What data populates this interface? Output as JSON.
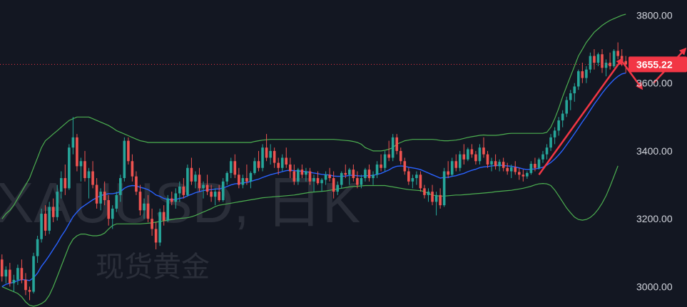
{
  "watermark": {
    "symbol": "XAUUSD, 日K",
    "name": "现货黄金"
  },
  "chart_data": {
    "type": "candlestick",
    "ylim": [
      2940,
      3845
    ],
    "y_ticks": [
      {
        "value": 3800,
        "label": "3800.00"
      },
      {
        "value": 3600,
        "label": "3600.00"
      },
      {
        "value": 3400,
        "label": "3400.00"
      },
      {
        "value": 3200,
        "label": "3200.00"
      },
      {
        "value": 3000,
        "label": "3000.00"
      }
    ],
    "last_price": {
      "value": 3655.22,
      "label": "3655.22"
    },
    "colors": {
      "background": "#131722",
      "up": "#26a69a",
      "down": "#ef5350",
      "ma": "#2962ff",
      "bands": "#4caf50",
      "price_line": "#f23645",
      "arrows": "#f23645",
      "axis_text": "#d1d4dc",
      "watermark": "#2a2e39"
    },
    "candles": [
      [
        3080,
        3095,
        3015,
        3030
      ],
      [
        3030,
        3060,
        3010,
        3050
      ],
      [
        3050,
        3070,
        3000,
        3010
      ],
      [
        3010,
        3035,
        2985,
        3020
      ],
      [
        3020,
        3065,
        3005,
        3055
      ],
      [
        3055,
        3080,
        3010,
        3020
      ],
      [
        3020,
        3040,
        2975,
        2990
      ],
      [
        2990,
        3000,
        2960,
        2985
      ],
      [
        2985,
        3100,
        2980,
        3090
      ],
      [
        3090,
        3150,
        3070,
        3140
      ],
      [
        3140,
        3230,
        3130,
        3215
      ],
      [
        3215,
        3240,
        3150,
        3165
      ],
      [
        3165,
        3250,
        3155,
        3235
      ],
      [
        3235,
        3260,
        3190,
        3205
      ],
      [
        3205,
        3300,
        3195,
        3280
      ],
      [
        3280,
        3340,
        3260,
        3320
      ],
      [
        3320,
        3360,
        3270,
        3290
      ],
      [
        3290,
        3420,
        3285,
        3410
      ],
      [
        3410,
        3500,
        3390,
        3440
      ],
      [
        3440,
        3450,
        3340,
        3355
      ],
      [
        3355,
        3380,
        3310,
        3370
      ],
      [
        3370,
        3400,
        3310,
        3320
      ],
      [
        3320,
        3350,
        3260,
        3340
      ],
      [
        3340,
        3370,
        3290,
        3300
      ],
      [
        3300,
        3320,
        3230,
        3245
      ],
      [
        3245,
        3290,
        3225,
        3280
      ],
      [
        3280,
        3310,
        3240,
        3255
      ],
      [
        3255,
        3270,
        3180,
        3200
      ],
      [
        3200,
        3240,
        3170,
        3230
      ],
      [
        3230,
        3280,
        3220,
        3270
      ],
      [
        3270,
        3330,
        3250,
        3320
      ],
      [
        3320,
        3440,
        3310,
        3430
      ],
      [
        3430,
        3440,
        3360,
        3370
      ],
      [
        3370,
        3390,
        3310,
        3325
      ],
      [
        3325,
        3340,
        3270,
        3280
      ],
      [
        3280,
        3300,
        3210,
        3225
      ],
      [
        3225,
        3260,
        3200,
        3245
      ],
      [
        3245,
        3270,
        3190,
        3200
      ],
      [
        3200,
        3230,
        3150,
        3170
      ],
      [
        3170,
        3190,
        3110,
        3130
      ],
      [
        3130,
        3230,
        3120,
        3220
      ],
      [
        3220,
        3240,
        3180,
        3195
      ],
      [
        3195,
        3270,
        3190,
        3260
      ],
      [
        3260,
        3280,
        3240,
        3250
      ],
      [
        3250,
        3290,
        3230,
        3275
      ],
      [
        3275,
        3310,
        3250,
        3295
      ],
      [
        3295,
        3320,
        3260,
        3270
      ],
      [
        3270,
        3360,
        3265,
        3350
      ],
      [
        3350,
        3380,
        3300,
        3310
      ],
      [
        3310,
        3340,
        3290,
        3330
      ],
      [
        3330,
        3350,
        3280,
        3290
      ],
      [
        3290,
        3310,
        3260,
        3300
      ],
      [
        3300,
        3330,
        3270,
        3280
      ],
      [
        3280,
        3300,
        3250,
        3265
      ],
      [
        3265,
        3290,
        3240,
        3280
      ],
      [
        3280,
        3300,
        3250,
        3255
      ],
      [
        3255,
        3320,
        3250,
        3310
      ],
      [
        3310,
        3340,
        3300,
        3335
      ],
      [
        3335,
        3380,
        3320,
        3370
      ],
      [
        3370,
        3390,
        3320,
        3330
      ],
      [
        3330,
        3350,
        3290,
        3300
      ],
      [
        3300,
        3330,
        3290,
        3320
      ],
      [
        3320,
        3360,
        3300,
        3310
      ],
      [
        3310,
        3340,
        3290,
        3335
      ],
      [
        3335,
        3380,
        3330,
        3370
      ],
      [
        3370,
        3400,
        3340,
        3350
      ],
      [
        3350,
        3420,
        3340,
        3410
      ],
      [
        3410,
        3450,
        3370,
        3380
      ],
      [
        3380,
        3420,
        3360,
        3400
      ],
      [
        3400,
        3410,
        3350,
        3365
      ],
      [
        3365,
        3380,
        3330,
        3350
      ],
      [
        3350,
        3390,
        3340,
        3380
      ],
      [
        3380,
        3410,
        3350,
        3360
      ],
      [
        3360,
        3380,
        3320,
        3340
      ],
      [
        3340,
        3360,
        3300,
        3310
      ],
      [
        3310,
        3350,
        3300,
        3345
      ],
      [
        3345,
        3360,
        3320,
        3330
      ],
      [
        3330,
        3350,
        3310,
        3340
      ],
      [
        3340,
        3350,
        3300,
        3310
      ],
      [
        3310,
        3330,
        3280,
        3320
      ],
      [
        3320,
        3340,
        3300,
        3305
      ],
      [
        3305,
        3320,
        3280,
        3315
      ],
      [
        3315,
        3340,
        3300,
        3330
      ],
      [
        3330,
        3350,
        3310,
        3320
      ],
      [
        3320,
        3340,
        3260,
        3280
      ],
      [
        3280,
        3310,
        3270,
        3300
      ],
      [
        3300,
        3340,
        3290,
        3335
      ],
      [
        3335,
        3360,
        3320,
        3330
      ],
      [
        3330,
        3350,
        3300,
        3345
      ],
      [
        3345,
        3360,
        3310,
        3320
      ],
      [
        3320,
        3340,
        3290,
        3300
      ],
      [
        3300,
        3330,
        3290,
        3320
      ],
      [
        3320,
        3350,
        3310,
        3345
      ],
      [
        3345,
        3360,
        3310,
        3320
      ],
      [
        3320,
        3340,
        3300,
        3330
      ],
      [
        3330,
        3370,
        3320,
        3360
      ],
      [
        3360,
        3390,
        3340,
        3350
      ],
      [
        3350,
        3400,
        3340,
        3390
      ],
      [
        3390,
        3430,
        3370,
        3380
      ],
      [
        3380,
        3450,
        3370,
        3440
      ],
      [
        3440,
        3450,
        3390,
        3400
      ],
      [
        3400,
        3410,
        3360,
        3370
      ],
      [
        3370,
        3380,
        3330,
        3340
      ],
      [
        3340,
        3350,
        3300,
        3310
      ],
      [
        3310,
        3330,
        3290,
        3320
      ],
      [
        3320,
        3340,
        3300,
        3330
      ],
      [
        3330,
        3340,
        3280,
        3290
      ],
      [
        3290,
        3300,
        3260,
        3270
      ],
      [
        3270,
        3290,
        3250,
        3280
      ],
      [
        3280,
        3300,
        3240,
        3250
      ],
      [
        3250,
        3280,
        3210,
        3270
      ],
      [
        3270,
        3290,
        3230,
        3240
      ],
      [
        3240,
        3350,
        3235,
        3340
      ],
      [
        3340,
        3370,
        3320,
        3330
      ],
      [
        3330,
        3380,
        3325,
        3370
      ],
      [
        3370,
        3390,
        3340,
        3350
      ],
      [
        3350,
        3400,
        3340,
        3390
      ],
      [
        3390,
        3420,
        3360,
        3375
      ],
      [
        3375,
        3410,
        3370,
        3405
      ],
      [
        3405,
        3420,
        3380,
        3390
      ],
      [
        3390,
        3400,
        3360,
        3370
      ],
      [
        3370,
        3420,
        3360,
        3410
      ],
      [
        3410,
        3440,
        3380,
        3390
      ],
      [
        3390,
        3400,
        3350,
        3360
      ],
      [
        3360,
        3380,
        3340,
        3370
      ],
      [
        3370,
        3390,
        3345,
        3355
      ],
      [
        3355,
        3375,
        3340,
        3368
      ],
      [
        3368,
        3380,
        3340,
        3350
      ],
      [
        3350,
        3365,
        3330,
        3340
      ],
      [
        3340,
        3360,
        3320,
        3352
      ],
      [
        3352,
        3370,
        3330,
        3338
      ],
      [
        3338,
        3350,
        3315,
        3330
      ],
      [
        3330,
        3345,
        3310,
        3325
      ],
      [
        3325,
        3340,
        3318,
        3335
      ],
      [
        3335,
        3370,
        3330,
        3362
      ],
      [
        3362,
        3380,
        3340,
        3350
      ],
      [
        3350,
        3380,
        3345,
        3375
      ],
      [
        3375,
        3400,
        3365,
        3390
      ],
      [
        3390,
        3420,
        3375,
        3410
      ],
      [
        3410,
        3450,
        3400,
        3440
      ],
      [
        3440,
        3470,
        3420,
        3460
      ],
      [
        3460,
        3500,
        3445,
        3490
      ],
      [
        3490,
        3520,
        3470,
        3510
      ],
      [
        3510,
        3560,
        3500,
        3550
      ],
      [
        3550,
        3580,
        3520,
        3570
      ],
      [
        3570,
        3600,
        3545,
        3590
      ],
      [
        3590,
        3640,
        3580,
        3635
      ],
      [
        3635,
        3660,
        3600,
        3615
      ],
      [
        3615,
        3650,
        3600,
        3640
      ],
      [
        3640,
        3690,
        3630,
        3680
      ],
      [
        3680,
        3700,
        3640,
        3660
      ],
      [
        3660,
        3690,
        3650,
        3685
      ],
      [
        3685,
        3700,
        3630,
        3645
      ],
      [
        3645,
        3670,
        3620,
        3660
      ],
      [
        3660,
        3690,
        3640,
        3650
      ],
      [
        3650,
        3700,
        3645,
        3695
      ],
      [
        3695,
        3720,
        3670,
        3680
      ],
      [
        3680,
        3700,
        3650,
        3665
      ],
      [
        3665,
        3680,
        3630,
        3655
      ]
    ],
    "ma": [
      3000,
      3007,
      3010,
      3013,
      3018,
      3021,
      3020,
      3018,
      3026,
      3040,
      3060,
      3075,
      3092,
      3110,
      3128,
      3148,
      3165,
      3186,
      3206,
      3220,
      3232,
      3240,
      3248,
      3256,
      3262,
      3268,
      3272,
      3274,
      3274,
      3276,
      3280,
      3290,
      3296,
      3298,
      3297,
      3293,
      3290,
      3286,
      3279,
      3270,
      3266,
      3260,
      3257,
      3256,
      3257,
      3260,
      3262,
      3268,
      3272,
      3277,
      3280,
      3283,
      3285,
      3286,
      3288,
      3288,
      3291,
      3295,
      3300,
      3303,
      3304,
      3306,
      3307,
      3310,
      3314,
      3317,
      3322,
      3326,
      3330,
      3333,
      3336,
      3339,
      3342,
      3343,
      3342,
      3341,
      3340,
      3339,
      3337,
      3335,
      3333,
      3331,
      3330,
      3329,
      3326,
      3325,
      3325,
      3326,
      3328,
      3328,
      3327,
      3326,
      3327,
      3327,
      3328,
      3331,
      3334,
      3339,
      3344,
      3351,
      3355,
      3356,
      3355,
      3352,
      3350,
      3348,
      3345,
      3340,
      3335,
      3330,
      3325,
      3320,
      3322,
      3322,
      3325,
      3327,
      3331,
      3334,
      3339,
      3343,
      3346,
      3351,
      3353,
      3354,
      3356,
      3357,
      3358,
      3357,
      3356,
      3355,
      3353,
      3350,
      3347,
      3345,
      3346,
      3347,
      3349,
      3352,
      3358,
      3366,
      3376,
      3388,
      3402,
      3418,
      3434,
      3451,
      3468,
      3486,
      3502,
      3520,
      3538,
      3554,
      3570,
      3585,
      3598,
      3610,
      3620,
      3627,
      3630
    ],
    "band_upper": [
      3200,
      3215,
      3225,
      3240,
      3260,
      3280,
      3300,
      3320,
      3350,
      3380,
      3410,
      3430,
      3440,
      3450,
      3460,
      3470,
      3480,
      3490,
      3495,
      3500,
      3500,
      3500,
      3500,
      3495,
      3490,
      3485,
      3480,
      3475,
      3468,
      3460,
      3455,
      3450,
      3445,
      3440,
      3435,
      3430,
      3428,
      3425,
      3425,
      3425,
      3425,
      3425,
      3425,
      3425,
      3425,
      3425,
      3425,
      3425,
      3425,
      3425,
      3425,
      3425,
      3425,
      3425,
      3425,
      3425,
      3425,
      3425,
      3425,
      3425,
      3425,
      3425,
      3425,
      3425,
      3428,
      3430,
      3432,
      3433,
      3434,
      3434,
      3434,
      3434,
      3434,
      3434,
      3434,
      3434,
      3434,
      3434,
      3434,
      3434,
      3434,
      3434,
      3434,
      3434,
      3434,
      3433,
      3432,
      3431,
      3430,
      3428,
      3425,
      3420,
      3410,
      3405,
      3400,
      3400,
      3400,
      3402,
      3405,
      3410,
      3420,
      3425,
      3430,
      3432,
      3434,
      3434,
      3434,
      3434,
      3434,
      3434,
      3433,
      3431,
      3430,
      3430,
      3431,
      3432,
      3434,
      3437,
      3440,
      3442,
      3444,
      3446,
      3447,
      3446,
      3446,
      3446,
      3447,
      3449,
      3451,
      3452,
      3452,
      3452,
      3452,
      3452,
      3452,
      3452,
      3452,
      3452,
      3455,
      3470,
      3495,
      3525,
      3560,
      3590,
      3620,
      3650,
      3680,
      3700,
      3720,
      3735,
      3750,
      3760,
      3770,
      3778,
      3785,
      3790,
      3795,
      3800,
      3803
    ],
    "band_lower": [
      3000,
      2995,
      2990,
      2985,
      2980,
      2970,
      2955,
      2945,
      2942,
      2945,
      2950,
      2958,
      2975,
      3000,
      3030,
      3060,
      3090,
      3120,
      3140,
      3150,
      3155,
      3155,
      3152,
      3150,
      3150,
      3152,
      3158,
      3170,
      3180,
      3185,
      3185,
      3185,
      3185,
      3185,
      3185,
      3185,
      3186,
      3187,
      3188,
      3190,
      3192,
      3194,
      3196,
      3198,
      3200,
      3201,
      3202,
      3203,
      3206,
      3210,
      3215,
      3220,
      3225,
      3230,
      3236,
      3240,
      3242,
      3244,
      3246,
      3248,
      3250,
      3252,
      3254,
      3256,
      3258,
      3260,
      3262,
      3263,
      3264,
      3265,
      3266,
      3267,
      3268,
      3269,
      3270,
      3272,
      3274,
      3276,
      3278,
      3279,
      3280,
      3281,
      3282,
      3284,
      3286,
      3288,
      3290,
      3292,
      3294,
      3295,
      3296,
      3297,
      3298,
      3298,
      3298,
      3298,
      3298,
      3298,
      3296,
      3294,
      3292,
      3290,
      3288,
      3286,
      3285,
      3284,
      3283,
      3280,
      3275,
      3270,
      3268,
      3267,
      3267,
      3268,
      3269,
      3270,
      3270,
      3271,
      3272,
      3273,
      3274,
      3275,
      3276,
      3277,
      3278,
      3280,
      3281,
      3282,
      3283,
      3284,
      3286,
      3288,
      3290,
      3293,
      3296,
      3300,
      3303,
      3304,
      3303,
      3298,
      3285,
      3268,
      3250,
      3232,
      3218,
      3205,
      3198,
      3196,
      3198,
      3204,
      3214,
      3228,
      3246,
      3268,
      3295,
      3325,
      3356
    ],
    "arrows": [
      {
        "from": [
          136,
          3330
        ],
        "to": [
          157,
          3670
        ]
      },
      {
        "from": [
          157,
          3665
        ],
        "to": [
          162,
          3585
        ]
      },
      {
        "from": [
          165,
          3600
        ],
        "to": [
          173,
          3700
        ]
      }
    ]
  }
}
